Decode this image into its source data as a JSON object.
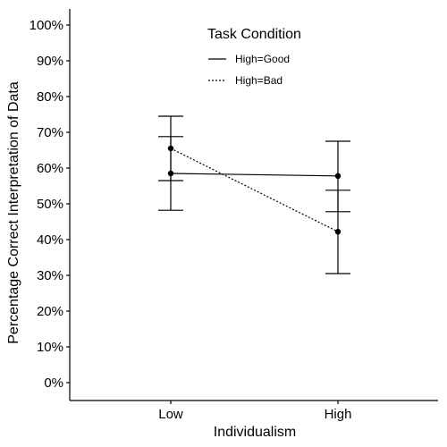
{
  "chart_data": {
    "type": "line",
    "title": "",
    "xlabel": "Individualism",
    "ylabel": "Percentage Correct Interpretation of Data",
    "categories": [
      "Low",
      "High"
    ],
    "ylim": [
      0,
      1
    ],
    "yticks": [
      0,
      0.1,
      0.2,
      0.3,
      0.4,
      0.5,
      0.6,
      0.7,
      0.8,
      0.9,
      1.0
    ],
    "ytick_labels": [
      "0%",
      "10%",
      "20%",
      "30%",
      "40%",
      "50%",
      "60%",
      "70%",
      "80%",
      "90%",
      "100%"
    ],
    "grid": false,
    "legend": {
      "title": "Task Condition",
      "placement": "top-center"
    },
    "series": [
      {
        "name": "High=Good",
        "linestyle": "solid",
        "values": [
          0.585,
          0.578
        ],
        "error_low": [
          0.482,
          0.478
        ],
        "error_high": [
          0.688,
          0.675
        ]
      },
      {
        "name": "High=Bad",
        "linestyle": "dotted",
        "values": [
          0.655,
          0.422
        ],
        "error_low": [
          0.565,
          0.305
        ],
        "error_high": [
          0.745,
          0.538
        ]
      }
    ]
  }
}
